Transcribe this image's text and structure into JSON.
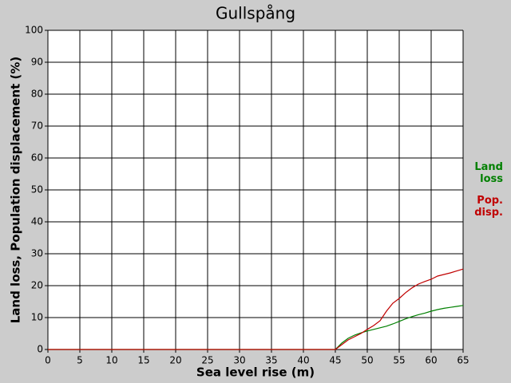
{
  "chart_data": {
    "type": "line",
    "title": "Gullspång",
    "x_label": "Sea level rise (m)",
    "y_label": "Land loss, Population displacement (%)",
    "x": [
      0,
      45,
      46,
      47,
      48,
      49,
      50,
      51,
      52,
      53,
      54,
      55,
      56,
      57,
      58,
      59,
      60,
      61,
      62,
      63,
      64,
      65
    ],
    "series": [
      {
        "name": "Land loss",
        "color": "#008000",
        "values": [
          0,
          0,
          2,
          3.5,
          4.5,
          5.2,
          5.8,
          6.3,
          6.8,
          7.3,
          8,
          8.8,
          9.6,
          10.3,
          10.9,
          11.4,
          12,
          12.5,
          12.9,
          13.2,
          13.5,
          13.8
        ]
      },
      {
        "name": "Pop. disp.",
        "color": "#c00000",
        "values": [
          0,
          0,
          1.5,
          3,
          4,
          5,
          6.3,
          7.5,
          9,
          12,
          14.5,
          16,
          17.8,
          19.3,
          20.5,
          21.3,
          22,
          23,
          23.5,
          24,
          24.6,
          25.2
        ]
      }
    ],
    "xlim": [
      0,
      65
    ],
    "xticks": [
      0,
      5,
      10,
      15,
      20,
      25,
      30,
      35,
      40,
      45,
      50,
      55,
      60,
      65
    ],
    "ylim": [
      0,
      100
    ],
    "yticks": [
      0,
      10,
      20,
      30,
      40,
      50,
      60,
      70,
      80,
      90,
      100
    ],
    "grid": true
  }
}
